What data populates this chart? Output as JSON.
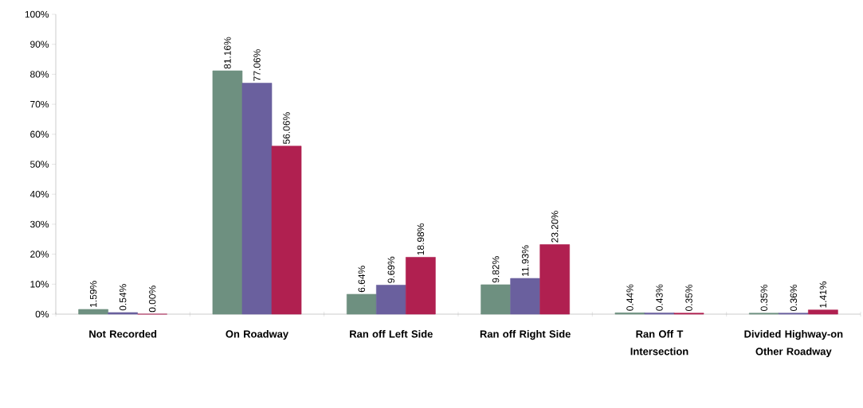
{
  "chart_data": {
    "type": "bar",
    "categories": [
      "Not Recorded",
      "On Roadway",
      "Ran off Left Side",
      "Ran off Right Side",
      "Ran Off T Intersection",
      "Divided Highway-on Other Roadway"
    ],
    "series": [
      {
        "color": "#6e9080",
        "values": [
          1.59,
          81.16,
          6.64,
          9.82,
          0.44,
          0.35
        ],
        "value_labels": [
          "1.59%",
          "81.16%",
          "6.64%",
          "9.82%",
          "0.44%",
          "0.35%"
        ]
      },
      {
        "color": "#6a609e",
        "values": [
          0.54,
          77.06,
          9.69,
          11.93,
          0.43,
          0.36
        ],
        "value_labels": [
          "0.54%",
          "77.06%",
          "9.69%",
          "11.93%",
          "0.43%",
          "0.36%"
        ]
      },
      {
        "color": "#b02050",
        "values": [
          0.0,
          56.06,
          18.98,
          23.2,
          0.35,
          1.41
        ],
        "value_labels": [
          "0.00%",
          "56.06%",
          "18.98%",
          "23.20%",
          "0.35%",
          "1.41%"
        ]
      }
    ],
    "ylim": [
      0,
      100
    ],
    "yticks": [
      {
        "value": 0,
        "label": "0%"
      },
      {
        "value": 10,
        "label": "10%"
      },
      {
        "value": 20,
        "label": "20%"
      },
      {
        "value": 30,
        "label": "30%"
      },
      {
        "value": 40,
        "label": "40%"
      },
      {
        "value": 50,
        "label": "50%"
      },
      {
        "value": 60,
        "label": "60%"
      },
      {
        "value": 70,
        "label": "70%"
      },
      {
        "value": 80,
        "label": "80%"
      },
      {
        "value": 90,
        "label": "90%"
      },
      {
        "value": 100,
        "label": "100%"
      }
    ]
  }
}
